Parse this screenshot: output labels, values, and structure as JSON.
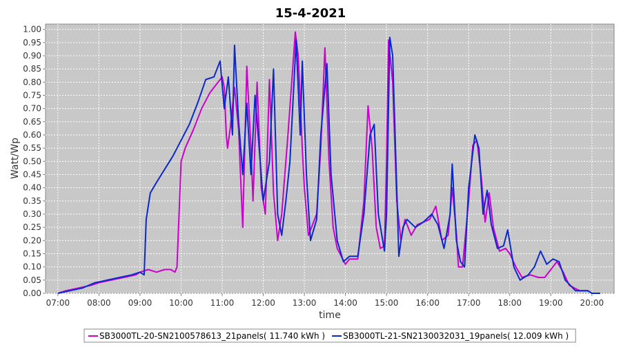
{
  "chart_data": {
    "type": "line",
    "title": "15-4-2021",
    "x_label": "time",
    "y_label": "Watt/Wp",
    "xlim": [
      6.7,
      20.54
    ],
    "ylim": [
      0,
      1.02
    ],
    "grid": true,
    "legend": "bottom",
    "background": "#c8c8c8",
    "xticks": [
      {
        "value": 7,
        "label": "07:00"
      },
      {
        "value": 8,
        "label": "08:00"
      },
      {
        "value": 9,
        "label": "09:00"
      },
      {
        "value": 10,
        "label": "10:00"
      },
      {
        "value": 11,
        "label": "11:00"
      },
      {
        "value": 12,
        "label": "12:00"
      },
      {
        "value": 13,
        "label": "13:00"
      },
      {
        "value": 14,
        "label": "14:00"
      },
      {
        "value": 15,
        "label": "15:00"
      },
      {
        "value": 16,
        "label": "16:00"
      },
      {
        "value": 17,
        "label": "17:00"
      },
      {
        "value": 18,
        "label": "18:00"
      },
      {
        "value": 19,
        "label": "19:00"
      },
      {
        "value": 20,
        "label": "20:00"
      }
    ],
    "yticks": [
      {
        "value": 0,
        "label": "0.00"
      },
      {
        "value": 0.05,
        "label": "0.05"
      },
      {
        "value": 0.1,
        "label": "0.10"
      },
      {
        "value": 0.15,
        "label": "0.15"
      },
      {
        "value": 0.2,
        "label": "0.20"
      },
      {
        "value": 0.25,
        "label": "0.25"
      },
      {
        "value": 0.3,
        "label": "0.30"
      },
      {
        "value": 0.35,
        "label": "0.35"
      },
      {
        "value": 0.4,
        "label": "0.40"
      },
      {
        "value": 0.45,
        "label": "0.45"
      },
      {
        "value": 0.5,
        "label": "0.50"
      },
      {
        "value": 0.55,
        "label": "0.55"
      },
      {
        "value": 0.6,
        "label": "0.60"
      },
      {
        "value": 0.65,
        "label": "0.65"
      },
      {
        "value": 0.7,
        "label": "0.70"
      },
      {
        "value": 0.75,
        "label": "0.75"
      },
      {
        "value": 0.8,
        "label": "0.80"
      },
      {
        "value": 0.85,
        "label": "0.85"
      },
      {
        "value": 0.9,
        "label": "0.90"
      },
      {
        "value": 0.95,
        "label": "0.95"
      },
      {
        "value": 1,
        "label": "1.00"
      }
    ],
    "series": [
      {
        "name": "SB3000TL-20-SN2100578613_21panels( 11.740 kWh )",
        "color": "#cc00cc",
        "x": [
          7.0,
          7.2,
          7.5,
          7.8,
          8.0,
          8.3,
          8.6,
          8.9,
          9.0,
          9.2,
          9.4,
          9.6,
          9.75,
          9.85,
          9.9,
          10.0,
          10.1,
          10.3,
          10.5,
          10.7,
          10.9,
          11.0,
          11.05,
          11.1,
          11.13,
          11.2,
          11.3,
          11.4,
          11.5,
          11.6,
          11.7,
          11.75,
          11.85,
          11.95,
          12.05,
          12.15,
          12.25,
          12.35,
          12.45,
          12.6,
          12.78,
          12.85,
          12.95,
          13.0,
          13.1,
          13.2,
          13.3,
          13.4,
          13.5,
          13.6,
          13.7,
          13.8,
          14.0,
          14.1,
          14.3,
          14.45,
          14.55,
          14.65,
          14.75,
          14.85,
          14.95,
          15.0,
          15.05,
          15.15,
          15.25,
          15.35,
          15.45,
          15.6,
          15.75,
          15.9,
          16.05,
          16.2,
          16.35,
          16.5,
          16.6,
          16.7,
          16.75,
          16.85,
          17.0,
          17.1,
          17.2,
          17.3,
          17.4,
          17.5,
          17.6,
          17.75,
          17.9,
          18.0,
          18.15,
          18.3,
          18.5,
          18.7,
          18.85,
          19.0,
          19.15,
          19.3,
          19.45,
          19.7,
          19.9,
          20.0,
          20.2
        ],
        "values": [
          0.0,
          0.01,
          0.02,
          0.03,
          0.04,
          0.05,
          0.06,
          0.07,
          0.08,
          0.09,
          0.08,
          0.09,
          0.09,
          0.08,
          0.1,
          0.5,
          0.55,
          0.62,
          0.7,
          0.76,
          0.8,
          0.82,
          0.78,
          0.6,
          0.55,
          0.63,
          0.78,
          0.62,
          0.25,
          0.86,
          0.55,
          0.35,
          0.8,
          0.4,
          0.3,
          0.81,
          0.38,
          0.2,
          0.3,
          0.6,
          0.99,
          0.9,
          0.55,
          0.4,
          0.22,
          0.26,
          0.3,
          0.55,
          0.93,
          0.5,
          0.25,
          0.17,
          0.11,
          0.13,
          0.13,
          0.35,
          0.71,
          0.55,
          0.25,
          0.17,
          0.18,
          0.5,
          0.96,
          0.8,
          0.35,
          0.2,
          0.28,
          0.22,
          0.26,
          0.27,
          0.28,
          0.33,
          0.2,
          0.22,
          0.4,
          0.23,
          0.1,
          0.1,
          0.35,
          0.56,
          0.58,
          0.45,
          0.27,
          0.38,
          0.25,
          0.16,
          0.17,
          0.15,
          0.1,
          0.06,
          0.07,
          0.06,
          0.06,
          0.09,
          0.12,
          0.08,
          0.03,
          0.01,
          0.01,
          0.0,
          0.0
        ]
      },
      {
        "name": "SB3000TL-21-SN2130032031_19panels( 12.009 kWh )",
        "color": "#0a28cc",
        "x": [
          7.0,
          7.3,
          7.6,
          7.9,
          8.2,
          8.5,
          8.8,
          9.0,
          9.1,
          9.15,
          9.25,
          9.4,
          9.6,
          9.8,
          10.0,
          10.2,
          10.4,
          10.6,
          10.8,
          10.95,
          11.05,
          11.15,
          11.25,
          11.3,
          11.4,
          11.5,
          11.6,
          11.7,
          11.8,
          11.9,
          12.0,
          12.15,
          12.25,
          12.35,
          12.45,
          12.55,
          12.65,
          12.8,
          12.9,
          12.95,
          13.05,
          13.15,
          13.3,
          13.4,
          13.55,
          13.65,
          13.8,
          13.95,
          14.1,
          14.3,
          14.45,
          14.6,
          14.7,
          14.8,
          14.95,
          15.0,
          15.08,
          15.15,
          15.3,
          15.4,
          15.5,
          15.7,
          15.9,
          16.1,
          16.25,
          16.4,
          16.55,
          16.6,
          16.7,
          16.8,
          16.9,
          17.0,
          17.15,
          17.25,
          17.35,
          17.45,
          17.55,
          17.7,
          17.85,
          17.95,
          18.1,
          18.25,
          18.45,
          18.6,
          18.75,
          18.9,
          19.05,
          19.2,
          19.35,
          19.6,
          19.9,
          20.0,
          20.2
        ],
        "values": [
          0.0,
          0.01,
          0.02,
          0.04,
          0.05,
          0.06,
          0.07,
          0.08,
          0.07,
          0.28,
          0.38,
          0.42,
          0.47,
          0.52,
          0.58,
          0.64,
          0.72,
          0.81,
          0.82,
          0.88,
          0.7,
          0.82,
          0.6,
          0.94,
          0.65,
          0.45,
          0.72,
          0.45,
          0.75,
          0.55,
          0.35,
          0.5,
          0.85,
          0.3,
          0.22,
          0.35,
          0.5,
          0.96,
          0.6,
          0.88,
          0.45,
          0.2,
          0.28,
          0.6,
          0.87,
          0.45,
          0.2,
          0.12,
          0.14,
          0.14,
          0.3,
          0.6,
          0.64,
          0.3,
          0.16,
          0.3,
          0.97,
          0.9,
          0.14,
          0.25,
          0.28,
          0.25,
          0.27,
          0.3,
          0.26,
          0.17,
          0.3,
          0.49,
          0.2,
          0.12,
          0.1,
          0.4,
          0.6,
          0.55,
          0.3,
          0.39,
          0.26,
          0.17,
          0.18,
          0.24,
          0.1,
          0.05,
          0.07,
          0.1,
          0.16,
          0.11,
          0.13,
          0.12,
          0.05,
          0.01,
          0.01,
          0.0,
          0.0
        ]
      }
    ]
  }
}
